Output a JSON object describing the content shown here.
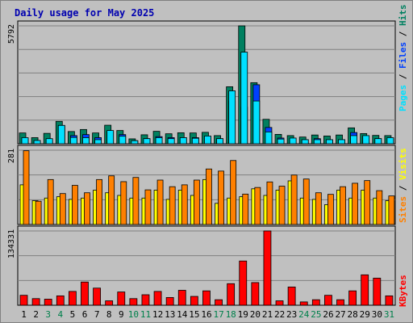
{
  "title": "Daily usage for May 2025",
  "colors": {
    "background": "#c0c0c0",
    "panel": "#c0c0c0",
    "grid": "#808080",
    "title": "#0000b0",
    "hits": "#008060",
    "files": "#0040ff",
    "pages": "#00e0ff",
    "visits": "#ffff00",
    "sites": "#ff8000",
    "kbytes": "#ff0000",
    "weekend": "#00804b",
    "weekday": "#000000"
  },
  "legend": {
    "top": {
      "pages": "Pages",
      "sep1": " / ",
      "files": "Files",
      "sep2": " / ",
      "hits": "Hits"
    },
    "middle": {
      "sites": "Sites",
      "sep": " / ",
      "visits": "Visits"
    },
    "bottom": {
      "kbytes": "KBytes"
    }
  },
  "chart_data": {
    "type": "bar",
    "title": "Daily usage for May 2025",
    "categories": [
      "1",
      "2",
      "3",
      "4",
      "5",
      "6",
      "7",
      "8",
      "9",
      "10",
      "11",
      "12",
      "13",
      "14",
      "15",
      "16",
      "17",
      "18",
      "19",
      "20",
      "21",
      "22",
      "23",
      "24",
      "25",
      "26",
      "27",
      "28",
      "29",
      "30",
      "31"
    ],
    "weekend_days": [
      "3",
      "4",
      "10",
      "11",
      "17",
      "18",
      "24",
      "25",
      "31"
    ],
    "panels": [
      {
        "id": "hits-files-pages",
        "ymax_label": "5792",
        "ylim": [
          0,
          5792
        ],
        "series": [
          {
            "name": "Hits",
            "values": [
              530,
              300,
              510,
              1100,
              600,
              700,
              530,
              910,
              650,
              240,
              440,
              610,
              490,
              540,
              530,
              560,
              400,
              2800,
              5792,
              3000,
              1200,
              460,
              400,
              330,
              430,
              380,
              430,
              780,
              500,
              410,
              400
            ]
          },
          {
            "name": "Files",
            "values": [
              250,
              160,
              210,
              900,
              400,
              450,
              300,
              600,
              450,
              150,
              250,
              350,
              300,
              300,
              300,
              350,
              250,
              2100,
              1800,
              2900,
              800,
              280,
              250,
              200,
              250,
              200,
              200,
              550,
              350,
              250,
              250
            ]
          },
          {
            "name": "Pages",
            "values": [
              300,
              160,
              250,
              900,
              310,
              300,
              200,
              650,
              370,
              150,
              250,
              300,
              250,
              300,
              270,
              380,
              250,
              2600,
              4500,
              2100,
              580,
              230,
              280,
              200,
              200,
              200,
              200,
              400,
              400,
              250,
              300
            ]
          }
        ]
      },
      {
        "id": "visits-sites",
        "ymax_label": "281",
        "ylim": [
          0,
          281
        ],
        "series": [
          {
            "name": "Visits",
            "values": [
              150,
              90,
              100,
              105,
              95,
              100,
              130,
              120,
              110,
              100,
              100,
              130,
              95,
              130,
              110,
              170,
              80,
              100,
              105,
              135,
              110,
              130,
              165,
              100,
              95,
              75,
              130,
              100,
              130,
              100,
              90
            ]
          },
          {
            "name": "Sites",
            "values": [
              279,
              88,
              170,
              117,
              148,
              120,
              170,
              184,
              162,
              178,
              131,
              168,
              143,
              150,
              168,
              210,
              202,
              242,
              115,
              140,
              161,
              145,
              187,
              172,
              120,
              114,
              143,
              156,
              166,
              128,
              108
            ]
          }
        ]
      },
      {
        "id": "kbytes",
        "ymax_label": "134331",
        "ylim": [
          0,
          134331
        ],
        "series": [
          {
            "name": "KBytes",
            "values": [
              18000,
              12000,
              11000,
              17000,
              25000,
              42000,
              31000,
              8000,
              24000,
              12000,
              19000,
              25000,
              14000,
              27000,
              16000,
              26000,
              10000,
              39000,
              80000,
              41000,
              134331,
              8000,
              33000,
              6000,
              10000,
              18000,
              10000,
              26000,
              55000,
              49000,
              17000
            ]
          }
        ]
      }
    ]
  }
}
